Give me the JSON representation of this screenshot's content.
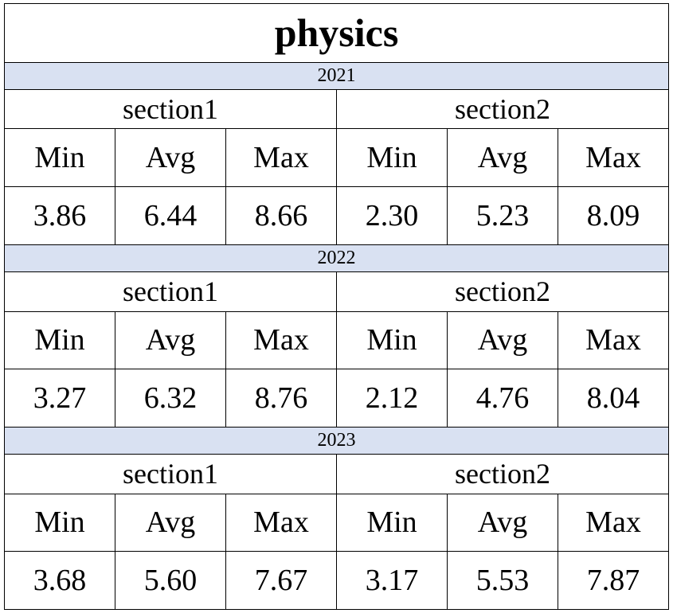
{
  "chart_data": {
    "type": "table",
    "title": "physics",
    "column_headers": [
      "Min",
      "Avg",
      "Max"
    ],
    "colors": {
      "year_band": "#d9e1f2",
      "border": "#000000",
      "background": "#ffffff"
    },
    "years": [
      {
        "year": "2021",
        "sections": [
          {
            "name": "section1",
            "values": [
              "3.86",
              "6.44",
              "8.66"
            ]
          },
          {
            "name": "section2",
            "values": [
              "2.30",
              "5.23",
              "8.09"
            ]
          }
        ]
      },
      {
        "year": "2022",
        "sections": [
          {
            "name": "section1",
            "values": [
              "3.27",
              "6.32",
              "8.76"
            ]
          },
          {
            "name": "section2",
            "values": [
              "2.12",
              "4.76",
              "8.04"
            ]
          }
        ]
      },
      {
        "year": "2023",
        "sections": [
          {
            "name": "section1",
            "values": [
              "3.68",
              "5.60",
              "7.67"
            ]
          },
          {
            "name": "section2",
            "values": [
              "3.17",
              "5.53",
              "7.87"
            ]
          }
        ]
      }
    ]
  }
}
